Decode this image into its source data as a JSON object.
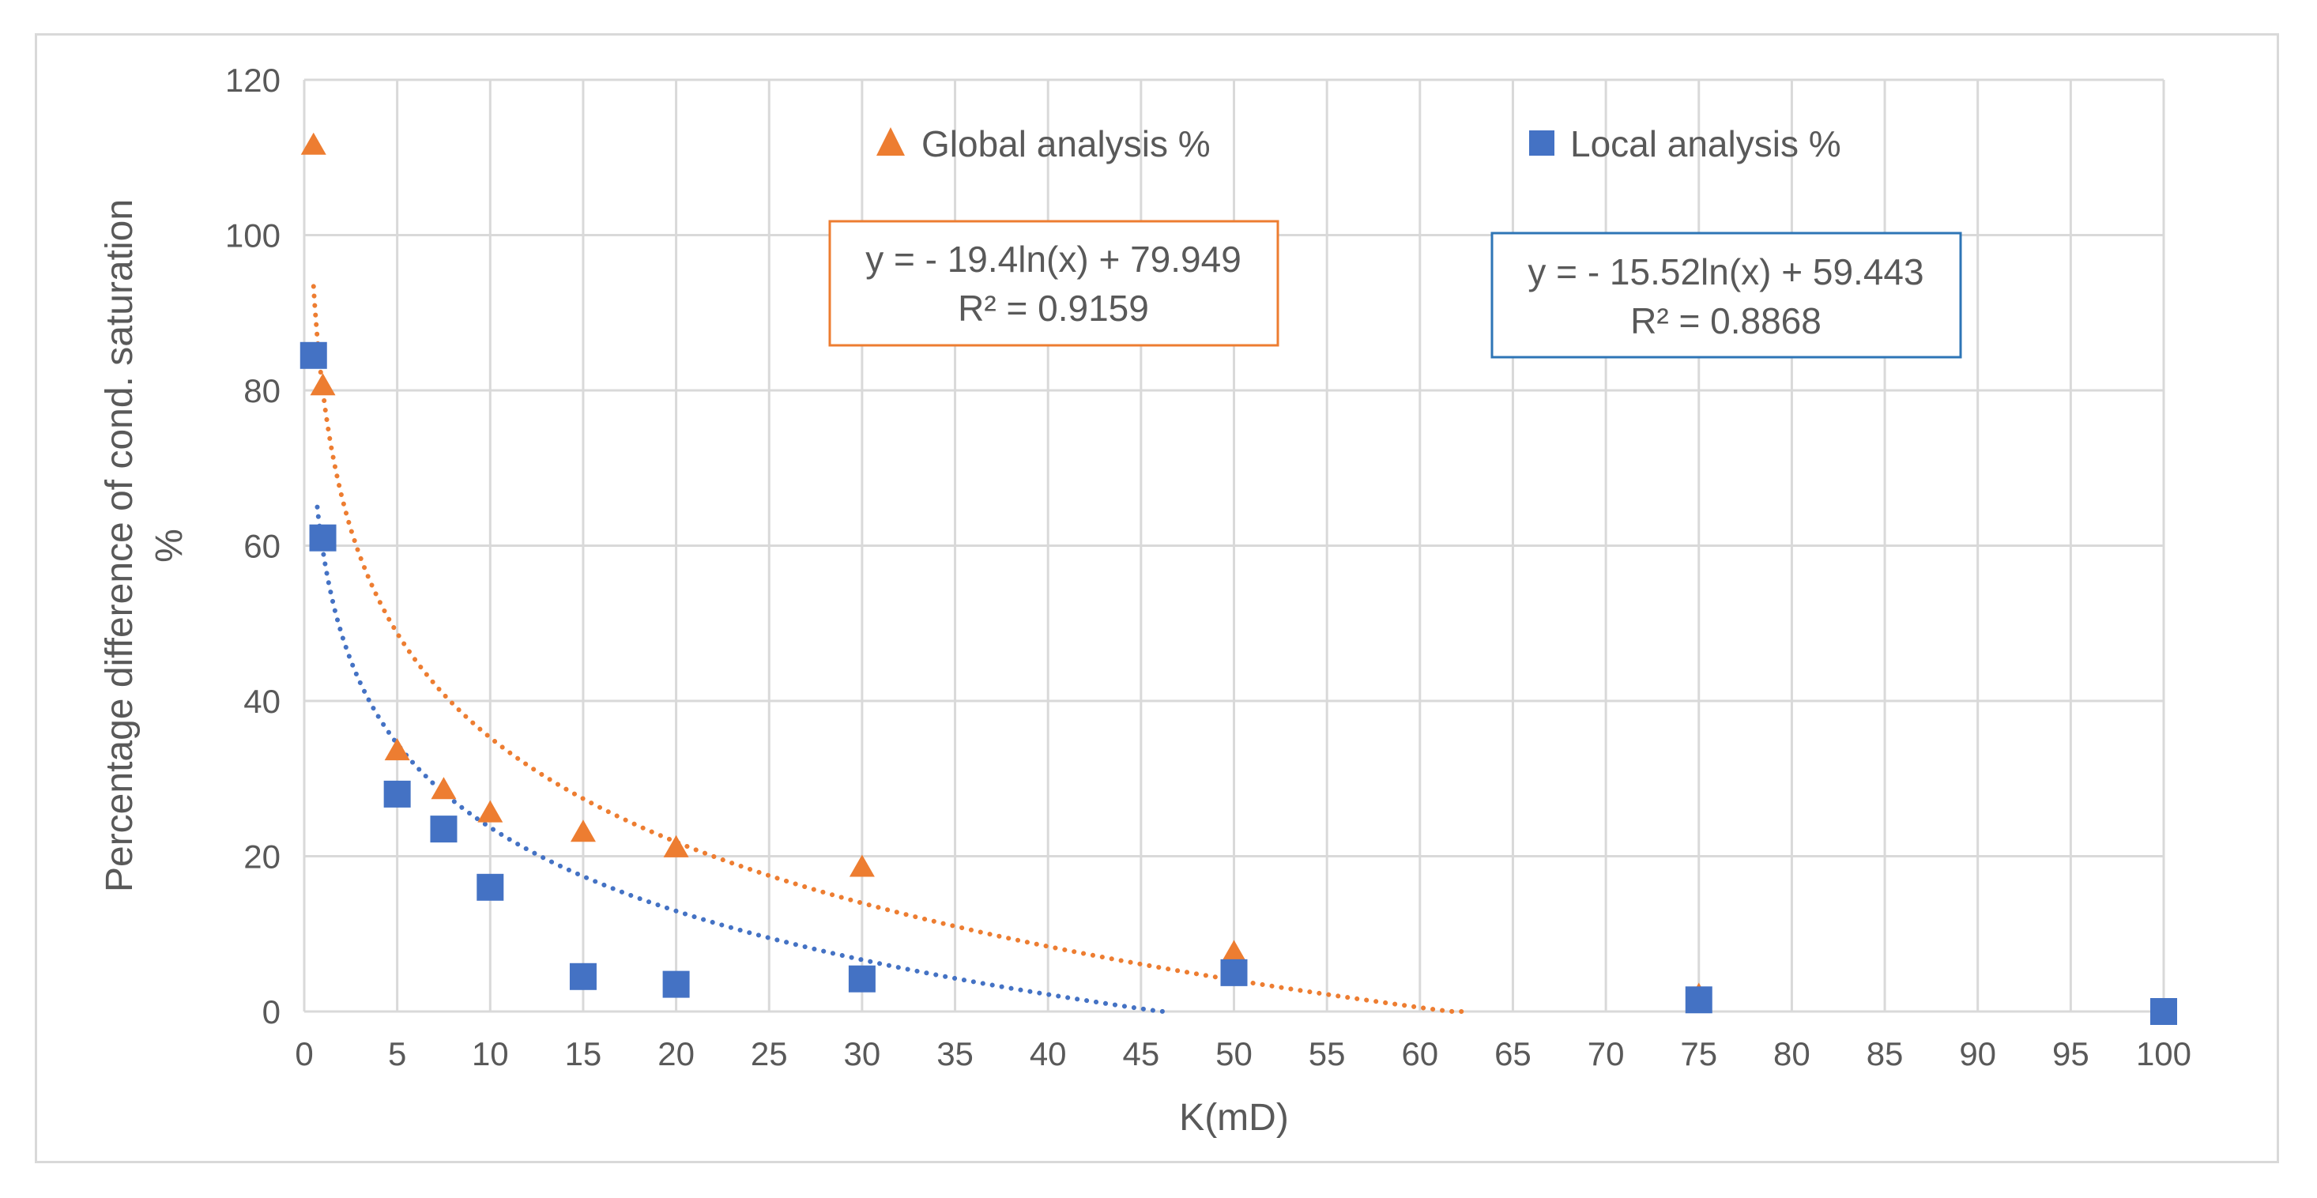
{
  "chart_data": {
    "type": "scatter",
    "title": "",
    "xlabel": "K(mD)",
    "ylabel_lines": [
      "Percentage difference of cond. saturation",
      "%"
    ],
    "xlim": [
      0,
      100
    ],
    "ylim": [
      0,
      120
    ],
    "x_ticks": [
      0,
      5,
      10,
      15,
      20,
      25,
      30,
      35,
      40,
      45,
      50,
      55,
      60,
      65,
      70,
      75,
      80,
      85,
      90,
      95,
      100
    ],
    "y_ticks": [
      0,
      20,
      40,
      60,
      80,
      100,
      120
    ],
    "grid": true,
    "legend_placement": "top",
    "series": [
      {
        "name": "Global analysis %",
        "marker": "triangle",
        "color": "#ED7D31",
        "points": [
          {
            "x": 0.5,
            "y": 111.5
          },
          {
            "x": 1,
            "y": 80.5
          },
          {
            "x": 5,
            "y": 33.5
          },
          {
            "x": 7.5,
            "y": 28.5
          },
          {
            "x": 10,
            "y": 25.5
          },
          {
            "x": 15,
            "y": 23
          },
          {
            "x": 20,
            "y": 21
          },
          {
            "x": 30,
            "y": 18.5
          },
          {
            "x": 50,
            "y": 7.5
          },
          {
            "x": 75,
            "y": 2
          },
          {
            "x": 100,
            "y": 0
          }
        ],
        "trendline": {
          "type": "log",
          "a": -19.4,
          "b": 79.949,
          "x_from": 0.5,
          "x_to": 62.5,
          "equation": "y = - 19.4ln(x) + 79.949",
          "r2": "R² = 0.9159"
        }
      },
      {
        "name": "Local analysis %",
        "marker": "square",
        "color": "#4472C4",
        "points": [
          {
            "x": 0.5,
            "y": 84.5
          },
          {
            "x": 1,
            "y": 61
          },
          {
            "x": 5,
            "y": 28
          },
          {
            "x": 7.5,
            "y": 23.5
          },
          {
            "x": 10,
            "y": 16
          },
          {
            "x": 15,
            "y": 4.5
          },
          {
            "x": 20,
            "y": 3.5
          },
          {
            "x": 30,
            "y": 4.2
          },
          {
            "x": 50,
            "y": 5
          },
          {
            "x": 75,
            "y": 1.5
          },
          {
            "x": 100,
            "y": 0
          }
        ],
        "trendline": {
          "type": "log",
          "a": -15.52,
          "b": 59.443,
          "x_from": 0.7,
          "x_to": 46.5,
          "equation": "y = - 15.52ln(x) + 59.443",
          "r2": "R² = 0.8868"
        }
      }
    ]
  }
}
